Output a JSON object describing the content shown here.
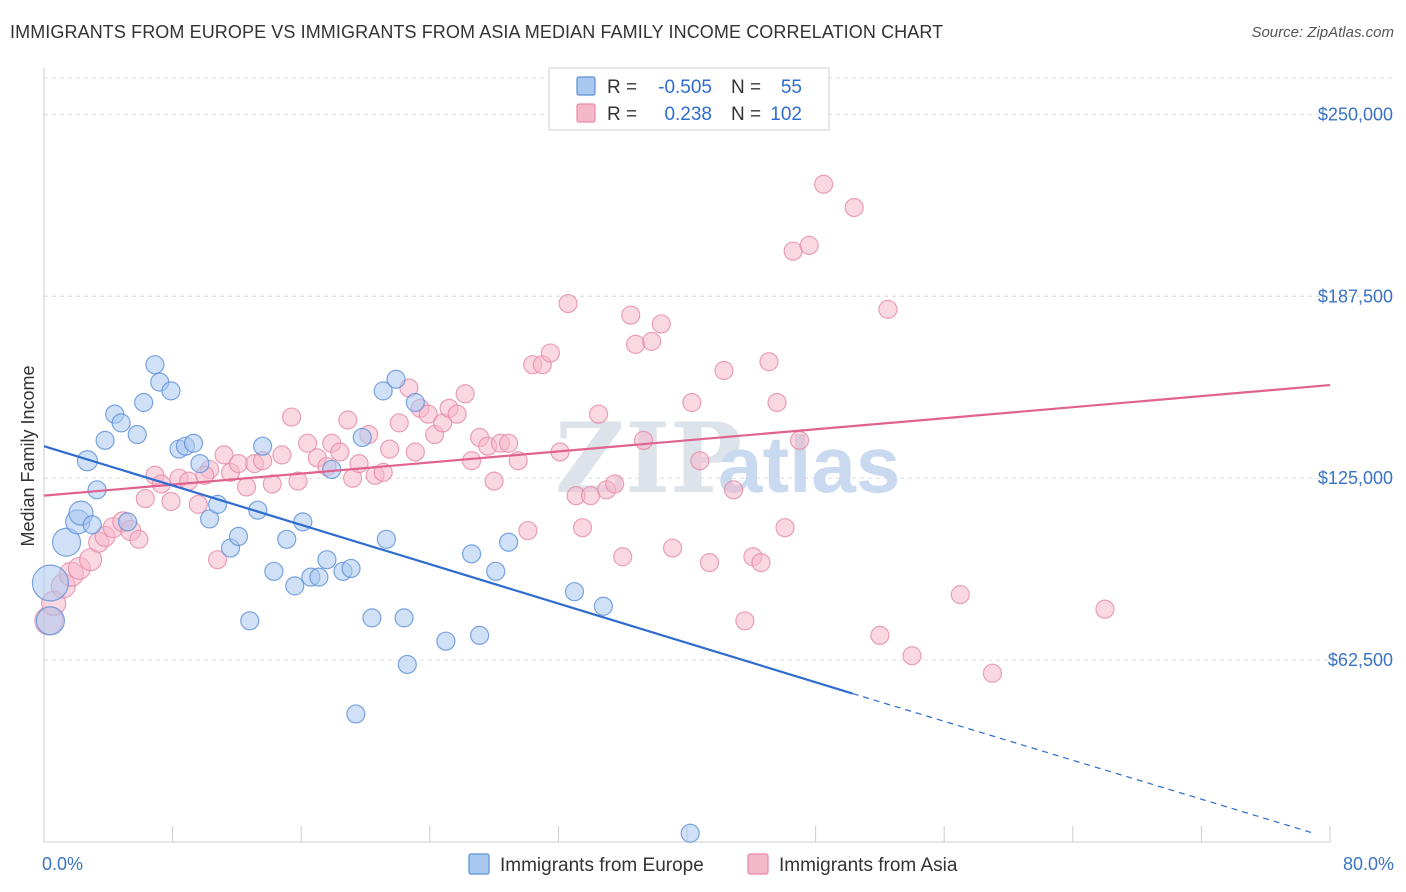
{
  "title": "IMMIGRANTS FROM EUROPE VS IMMIGRANTS FROM ASIA MEDIAN FAMILY INCOME CORRELATION CHART",
  "source": "Source: ZipAtlas.com",
  "watermark": {
    "zip": "ZIP",
    "atlas": "atlas"
  },
  "colors": {
    "europe_fill": "#a9c8f0",
    "europe_stroke": "#5b8fd8",
    "europe_line": "#2e6cd0",
    "asia_fill": "#f5b8cb",
    "asia_stroke": "#e58aa8",
    "asia_line": "#e0628e",
    "axis_label": "#3b73c4",
    "grid": "#dcdcdc"
  },
  "chart_data": {
    "type": "scatter",
    "ylabel": "Median Family Income",
    "xlim": [
      0,
      80
    ],
    "ylim": [
      0,
      262500
    ],
    "x_tick_labels": [
      {
        "x": 0,
        "label": "0.0%"
      },
      {
        "x": 80,
        "label": "80.0%"
      }
    ],
    "y_ticks": [
      {
        "y": 62500,
        "label": "$62,500"
      },
      {
        "y": 125000,
        "label": "$125,000"
      },
      {
        "y": 187500,
        "label": "$187,500"
      },
      {
        "y": 250000,
        "label": "$250,000"
      }
    ],
    "grid": "horizontal dashed",
    "legend": {
      "placement": "top-center",
      "rows": [
        {
          "r_label": "R =",
          "r_value": "-0.505",
          "n_label": "N =",
          "n_value": "55"
        },
        {
          "r_label": "R =",
          "r_value": "0.238",
          "n_label": "N =",
          "n_value": "102"
        }
      ]
    },
    "series": [
      {
        "name": "Immigrants from Europe",
        "trend": {
          "x0": 0,
          "y0": 136000,
          "x1": 50.3,
          "y1": 51000,
          "dash_to_x": 79,
          "dash_to_y": 3000
        },
        "points": [
          [
            0.4,
            89000,
            18
          ],
          [
            0.4,
            76000,
            14
          ],
          [
            1.4,
            103000,
            14
          ],
          [
            2.1,
            110000,
            12
          ],
          [
            2.3,
            113000,
            12
          ],
          [
            2.7,
            131000,
            10
          ],
          [
            3.3,
            121000,
            9
          ],
          [
            3.8,
            138000,
            9
          ],
          [
            4.4,
            147000,
            9
          ],
          [
            4.8,
            144000,
            9
          ],
          [
            5.8,
            140000,
            9
          ],
          [
            6.2,
            151000,
            9
          ],
          [
            6.9,
            164000,
            9
          ],
          [
            7.2,
            158000,
            9
          ],
          [
            7.9,
            155000,
            9
          ],
          [
            8.4,
            135000,
            9
          ],
          [
            8.8,
            136000,
            9
          ],
          [
            9.3,
            137000,
            9
          ],
          [
            9.7,
            130000,
            9
          ],
          [
            10.3,
            111000,
            9
          ],
          [
            10.8,
            116000,
            9
          ],
          [
            11.6,
            101000,
            9
          ],
          [
            12.1,
            105000,
            9
          ],
          [
            12.8,
            76000,
            9
          ],
          [
            13.3,
            114000,
            9
          ],
          [
            13.6,
            136000,
            9
          ],
          [
            14.3,
            93000,
            9
          ],
          [
            15.1,
            104000,
            9
          ],
          [
            15.6,
            88000,
            9
          ],
          [
            16.1,
            110000,
            9
          ],
          [
            16.6,
            91000,
            9
          ],
          [
            17.1,
            91000,
            9
          ],
          [
            17.6,
            97000,
            9
          ],
          [
            17.9,
            128000,
            9
          ],
          [
            18.6,
            93000,
            9
          ],
          [
            19.1,
            94000,
            9
          ],
          [
            19.4,
            44000,
            9
          ],
          [
            19.8,
            139000,
            9
          ],
          [
            20.4,
            77000,
            9
          ],
          [
            21.1,
            155000,
            9
          ],
          [
            21.3,
            104000,
            9
          ],
          [
            21.9,
            159000,
            9
          ],
          [
            22.4,
            77000,
            9
          ],
          [
            22.6,
            61000,
            9
          ],
          [
            23.1,
            151000,
            9
          ],
          [
            25.0,
            69000,
            9
          ],
          [
            26.6,
            99000,
            9
          ],
          [
            27.1,
            71000,
            9
          ],
          [
            28.1,
            93000,
            9
          ],
          [
            28.9,
            103000,
            9
          ],
          [
            33.0,
            86000,
            9
          ],
          [
            34.8,
            81000,
            9
          ],
          [
            40.2,
            3000,
            9
          ],
          [
            5.2,
            110000,
            9
          ],
          [
            3.0,
            109000,
            9
          ]
        ]
      },
      {
        "name": "Immigrants from Asia",
        "trend": {
          "x0": 0,
          "y0": 119000,
          "x1": 80,
          "y1": 157000
        },
        "points": [
          [
            0.3,
            76000,
            14
          ],
          [
            0.6,
            82000,
            12
          ],
          [
            1.2,
            88000,
            12
          ],
          [
            1.7,
            92000,
            12
          ],
          [
            2.2,
            94000,
            11
          ],
          [
            2.9,
            97000,
            11
          ],
          [
            3.4,
            103000,
            10
          ],
          [
            3.8,
            105000,
            10
          ],
          [
            4.3,
            108000,
            10
          ],
          [
            4.9,
            110000,
            10
          ],
          [
            5.4,
            107000,
            10
          ],
          [
            5.9,
            104000,
            9
          ],
          [
            6.3,
            118000,
            9
          ],
          [
            6.9,
            126000,
            9
          ],
          [
            7.3,
            123000,
            9
          ],
          [
            7.9,
            117000,
            9
          ],
          [
            8.4,
            125000,
            9
          ],
          [
            9.0,
            124000,
            9
          ],
          [
            9.6,
            116000,
            9
          ],
          [
            10.3,
            128000,
            9
          ],
          [
            10.8,
            97000,
            9
          ],
          [
            11.2,
            133000,
            9
          ],
          [
            11.6,
            127000,
            9
          ],
          [
            12.1,
            130000,
            9
          ],
          [
            12.6,
            122000,
            9
          ],
          [
            13.1,
            130000,
            9
          ],
          [
            13.6,
            131000,
            9
          ],
          [
            14.2,
            123000,
            9
          ],
          [
            14.8,
            133000,
            9
          ],
          [
            15.4,
            146000,
            9
          ],
          [
            15.8,
            124000,
            9
          ],
          [
            16.4,
            137000,
            9
          ],
          [
            17.0,
            132000,
            9
          ],
          [
            17.6,
            129000,
            9
          ],
          [
            17.9,
            137000,
            9
          ],
          [
            18.4,
            134000,
            9
          ],
          [
            18.9,
            145000,
            9
          ],
          [
            19.2,
            125000,
            9
          ],
          [
            19.6,
            130000,
            9
          ],
          [
            20.2,
            140000,
            9
          ],
          [
            20.6,
            126000,
            9
          ],
          [
            21.1,
            127000,
            9
          ],
          [
            21.5,
            135000,
            9
          ],
          [
            22.1,
            144000,
            9
          ],
          [
            22.7,
            156000,
            9
          ],
          [
            23.1,
            134000,
            9
          ],
          [
            23.4,
            149000,
            9
          ],
          [
            23.9,
            147000,
            9
          ],
          [
            24.3,
            140000,
            9
          ],
          [
            24.8,
            144000,
            9
          ],
          [
            25.2,
            149000,
            9
          ],
          [
            25.7,
            147000,
            9
          ],
          [
            26.2,
            154000,
            9
          ],
          [
            26.6,
            131000,
            9
          ],
          [
            27.1,
            139000,
            9
          ],
          [
            27.6,
            136000,
            9
          ],
          [
            28.0,
            124000,
            9
          ],
          [
            28.4,
            137000,
            9
          ],
          [
            28.9,
            137000,
            9
          ],
          [
            29.5,
            131000,
            9
          ],
          [
            30.1,
            107000,
            9
          ],
          [
            30.4,
            164000,
            9
          ],
          [
            31.0,
            164000,
            9
          ],
          [
            31.5,
            168000,
            9
          ],
          [
            32.1,
            134000,
            9
          ],
          [
            32.6,
            185000,
            9
          ],
          [
            33.1,
            119000,
            9
          ],
          [
            33.5,
            108000,
            9
          ],
          [
            34.0,
            119000,
            9
          ],
          [
            34.5,
            147000,
            9
          ],
          [
            35.0,
            121000,
            9
          ],
          [
            35.5,
            123000,
            9
          ],
          [
            36.0,
            98000,
            9
          ],
          [
            36.5,
            181000,
            9
          ],
          [
            36.8,
            171000,
            9
          ],
          [
            37.3,
            138000,
            9
          ],
          [
            37.8,
            172000,
            9
          ],
          [
            38.4,
            178000,
            9
          ],
          [
            39.1,
            101000,
            9
          ],
          [
            40.3,
            151000,
            9
          ],
          [
            40.8,
            131000,
            9
          ],
          [
            41.4,
            96000,
            9
          ],
          [
            42.3,
            162000,
            9
          ],
          [
            42.9,
            121000,
            9
          ],
          [
            43.6,
            76000,
            9
          ],
          [
            44.1,
            98000,
            9
          ],
          [
            44.6,
            96000,
            9
          ],
          [
            45.1,
            165000,
            9
          ],
          [
            45.6,
            151000,
            9
          ],
          [
            46.1,
            108000,
            9
          ],
          [
            46.6,
            203000,
            9
          ],
          [
            47.0,
            138000,
            9
          ],
          [
            47.6,
            205000,
            9
          ],
          [
            48.5,
            226000,
            9
          ],
          [
            50.4,
            218000,
            9
          ],
          [
            52.0,
            71000,
            9
          ],
          [
            52.5,
            183000,
            9
          ],
          [
            54.0,
            64000,
            9
          ],
          [
            57.0,
            85000,
            9
          ],
          [
            59.0,
            58000,
            9
          ],
          [
            66.0,
            80000,
            9
          ],
          [
            10.0,
            126000,
            9
          ]
        ]
      }
    ]
  }
}
